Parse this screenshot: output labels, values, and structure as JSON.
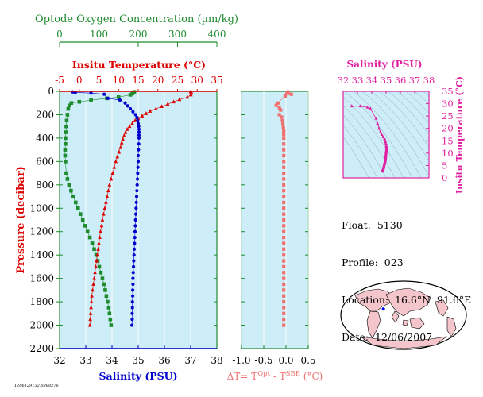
{
  "colors": {
    "oxygen": "#1e8c2e",
    "temperature": "#dd0000",
    "salinity": "#0000cc",
    "delta": "#f07070",
    "ts": "#e020a0",
    "panel_fill": "#cdeef8"
  },
  "caption": "1206129132.0388276",
  "info": {
    "float": "Float:  5130",
    "profile": "Profile:  023",
    "location": "Location:  16.6°N  91.6°E",
    "date": "Date:  12/06/2007"
  },
  "chart_data": [
    {
      "type": "scatter",
      "panel": "profile",
      "ylabel": "Pressure (decibar)",
      "ylim": [
        2200,
        0
      ],
      "yticks": [
        0,
        200,
        400,
        600,
        800,
        1000,
        1200,
        1400,
        1600,
        1800,
        2000,
        2200
      ],
      "axes": {
        "salinity": {
          "label": "Salinity (PSU)",
          "lim": [
            32,
            38
          ],
          "ticks": [
            32,
            33,
            34,
            35,
            36,
            37,
            38
          ]
        },
        "temperature": {
          "label": "Insitu Temperature (°C)",
          "lim": [
            -5,
            35
          ],
          "ticks": [
            -5,
            0,
            5,
            10,
            15,
            20,
            25,
            30,
            35
          ]
        },
        "oxygen": {
          "label": "Optode Oxygen Concentration (µm/kg)",
          "lim": [
            0,
            400
          ],
          "ticks": [
            0,
            100,
            200,
            300,
            400
          ]
        }
      },
      "series": [
        {
          "axis": "oxygen",
          "marker": "square",
          "points": [
            [
              190,
              5
            ],
            [
              188,
              10
            ],
            [
              185,
              20
            ],
            [
              180,
              30
            ],
            [
              150,
              50
            ],
            [
              120,
              60
            ],
            [
              80,
              75
            ],
            [
              50,
              90
            ],
            [
              30,
              100
            ],
            [
              25,
              120
            ],
            [
              22,
              150
            ],
            [
              20,
              200
            ],
            [
              18,
              250
            ],
            [
              17,
              300
            ],
            [
              16,
              350
            ],
            [
              15,
              400
            ],
            [
              15,
              450
            ],
            [
              14,
              500
            ],
            [
              14,
              550
            ],
            [
              15,
              600
            ],
            [
              17,
              700
            ],
            [
              20,
              750
            ],
            [
              24,
              800
            ],
            [
              29,
              850
            ],
            [
              35,
              900
            ],
            [
              41,
              950
            ],
            [
              47,
              1000
            ],
            [
              53,
              1050
            ],
            [
              59,
              1100
            ],
            [
              65,
              1150
            ],
            [
              71,
              1200
            ],
            [
              77,
              1250
            ],
            [
              83,
              1300
            ],
            [
              88,
              1350
            ],
            [
              93,
              1400
            ],
            [
              97,
              1450
            ],
            [
              101,
              1500
            ],
            [
              105,
              1550
            ],
            [
              109,
              1600
            ],
            [
              113,
              1650
            ],
            [
              116,
              1700
            ],
            [
              119,
              1750
            ],
            [
              122,
              1800
            ],
            [
              125,
              1850
            ],
            [
              127,
              1900
            ],
            [
              129,
              1950
            ],
            [
              131,
              2000
            ]
          ]
        },
        {
          "axis": "temperature",
          "marker": "triangle",
          "points": [
            [
              28.3,
              5
            ],
            [
              28.6,
              15
            ],
            [
              28.4,
              30
            ],
            [
              27.5,
              50
            ],
            [
              25.5,
              70
            ],
            [
              24,
              90
            ],
            [
              22.5,
              110
            ],
            [
              21,
              130
            ],
            [
              19.5,
              150
            ],
            [
              18,
              170
            ],
            [
              17,
              190
            ],
            [
              16,
              210
            ],
            [
              15,
              230
            ],
            [
              14.2,
              250
            ],
            [
              13.5,
              275
            ],
            [
              12.8,
              300
            ],
            [
              12.2,
              325
            ],
            [
              11.8,
              350
            ],
            [
              11.4,
              380
            ],
            [
              11.1,
              410
            ],
            [
              10.8,
              440
            ],
            [
              10.5,
              480
            ],
            [
              10.1,
              520
            ],
            [
              9.7,
              560
            ],
            [
              9.3,
              600
            ],
            [
              8.9,
              650
            ],
            [
              8.5,
              700
            ],
            [
              8.1,
              750
            ],
            [
              7.7,
              800
            ],
            [
              7.4,
              850
            ],
            [
              7.1,
              900
            ],
            [
              6.8,
              950
            ],
            [
              6.5,
              1000
            ],
            [
              6.2,
              1050
            ],
            [
              5.9,
              1100
            ],
            [
              5.7,
              1150
            ],
            [
              5.4,
              1200
            ],
            [
              5.2,
              1250
            ],
            [
              5,
              1300
            ],
            [
              4.8,
              1350
            ],
            [
              4.6,
              1400
            ],
            [
              4.4,
              1450
            ],
            [
              4.2,
              1500
            ],
            [
              4,
              1550
            ],
            [
              3.8,
              1600
            ],
            [
              3.6,
              1650
            ],
            [
              3.4,
              1700
            ],
            [
              3.2,
              1750
            ],
            [
              3.1,
              1800
            ],
            [
              3,
              1850
            ],
            [
              2.9,
              1900
            ],
            [
              2.8,
              1950
            ],
            [
              2.7,
              2000
            ]
          ]
        },
        {
          "axis": "salinity",
          "marker": "circle",
          "points": [
            [
              32.5,
              5
            ],
            [
              32.6,
              10
            ],
            [
              33.2,
              15
            ],
            [
              33.7,
              25
            ],
            [
              33.85,
              60
            ],
            [
              34.3,
              75
            ],
            [
              34.5,
              100
            ],
            [
              34.6,
              125
            ],
            [
              34.7,
              150
            ],
            [
              34.8,
              175
            ],
            [
              34.9,
              200
            ],
            [
              34.95,
              225
            ],
            [
              34.98,
              250
            ],
            [
              35,
              275
            ],
            [
              35.02,
              300
            ],
            [
              35.03,
              325
            ],
            [
              35.03,
              350
            ],
            [
              35.03,
              375
            ],
            [
              35.03,
              400
            ],
            [
              35.02,
              450
            ],
            [
              35.01,
              500
            ],
            [
              35,
              550
            ],
            [
              35,
              600
            ],
            [
              34.99,
              650
            ],
            [
              34.98,
              700
            ],
            [
              34.97,
              750
            ],
            [
              34.96,
              800
            ],
            [
              34.95,
              850
            ],
            [
              34.94,
              900
            ],
            [
              34.93,
              950
            ],
            [
              34.92,
              1000
            ],
            [
              34.91,
              1050
            ],
            [
              34.9,
              1100
            ],
            [
              34.89,
              1150
            ],
            [
              34.88,
              1200
            ],
            [
              34.87,
              1250
            ],
            [
              34.86,
              1300
            ],
            [
              34.85,
              1350
            ],
            [
              34.84,
              1400
            ],
            [
              34.83,
              1450
            ],
            [
              34.82,
              1500
            ],
            [
              34.81,
              1550
            ],
            [
              34.8,
              1600
            ],
            [
              34.8,
              1650
            ],
            [
              34.79,
              1700
            ],
            [
              34.79,
              1750
            ],
            [
              34.78,
              1800
            ],
            [
              34.78,
              1850
            ],
            [
              34.77,
              1900
            ],
            [
              34.77,
              1950
            ],
            [
              34.76,
              2000
            ]
          ]
        }
      ]
    },
    {
      "type": "scatter",
      "panel": "delta",
      "xlabel": "ΔT= T",
      "xlabel_sup1": "Opt",
      "xlabel_mid": " - T",
      "xlabel_sup2": "SBE",
      "xlabel_unit": " (°C)",
      "xlim": [
        -1.0,
        0.5
      ],
      "xticks": [
        "-1.0",
        "-0.5",
        "0.0",
        "0.5"
      ],
      "ylim": [
        2200,
        0
      ],
      "points": [
        [
          0.05,
          5
        ],
        [
          0.02,
          15
        ],
        [
          0.12,
          25
        ],
        [
          -0.02,
          40
        ],
        [
          -0.18,
          100
        ],
        [
          -0.22,
          120
        ],
        [
          -0.15,
          140
        ],
        [
          -0.12,
          160
        ],
        [
          -0.15,
          200
        ],
        [
          -0.1,
          220
        ],
        [
          -0.08,
          250
        ],
        [
          -0.07,
          280
        ],
        [
          -0.06,
          310
        ],
        [
          -0.05,
          340
        ],
        [
          -0.05,
          370
        ],
        [
          -0.05,
          400
        ],
        [
          -0.05,
          450
        ],
        [
          -0.05,
          500
        ],
        [
          -0.05,
          550
        ],
        [
          -0.05,
          600
        ],
        [
          -0.05,
          650
        ],
        [
          -0.05,
          700
        ],
        [
          -0.05,
          750
        ],
        [
          -0.05,
          800
        ],
        [
          -0.05,
          850
        ],
        [
          -0.05,
          900
        ],
        [
          -0.05,
          950
        ],
        [
          -0.05,
          1000
        ],
        [
          -0.05,
          1050
        ],
        [
          -0.05,
          1100
        ],
        [
          -0.05,
          1150
        ],
        [
          -0.05,
          1200
        ],
        [
          -0.05,
          1250
        ],
        [
          -0.05,
          1300
        ],
        [
          -0.05,
          1350
        ],
        [
          -0.05,
          1400
        ],
        [
          -0.05,
          1450
        ],
        [
          -0.05,
          1500
        ],
        [
          -0.05,
          1550
        ],
        [
          -0.05,
          1600
        ],
        [
          -0.05,
          1650
        ],
        [
          -0.05,
          1700
        ],
        [
          -0.05,
          1750
        ],
        [
          -0.05,
          1800
        ],
        [
          -0.05,
          1850
        ],
        [
          -0.05,
          1900
        ],
        [
          -0.05,
          1950
        ],
        [
          -0.05,
          2000
        ]
      ]
    },
    {
      "type": "scatter",
      "panel": "ts",
      "xlabel": "Salinity (PSU)",
      "ylabel": "Insitu Temperature (°C)",
      "xlim": [
        32,
        38
      ],
      "ylim": [
        0,
        35
      ],
      "xticks": [
        32,
        33,
        34,
        35,
        36,
        37,
        38
      ],
      "yticks": [
        0,
        5,
        10,
        15,
        20,
        25,
        30,
        35
      ],
      "points": [
        [
          32.6,
          29
        ],
        [
          33.2,
          29
        ],
        [
          33.7,
          28.5
        ],
        [
          33.9,
          28
        ],
        [
          34.3,
          24
        ],
        [
          34.4,
          22
        ],
        [
          34.5,
          20
        ],
        [
          34.6,
          18.5
        ],
        [
          34.7,
          17.5
        ],
        [
          34.8,
          16.5
        ],
        [
          34.9,
          15.5
        ],
        [
          34.95,
          14.5
        ],
        [
          35,
          13.5
        ],
        [
          35.02,
          12.5
        ],
        [
          35.03,
          11.5
        ],
        [
          35.03,
          11
        ],
        [
          35.02,
          10.5
        ],
        [
          35,
          10
        ],
        [
          35,
          9.5
        ],
        [
          34.99,
          9
        ],
        [
          34.98,
          8.5
        ],
        [
          34.97,
          8
        ],
        [
          34.96,
          7.5
        ],
        [
          34.95,
          7
        ],
        [
          34.93,
          6.5
        ],
        [
          34.91,
          6
        ],
        [
          34.89,
          5.5
        ],
        [
          34.87,
          5
        ],
        [
          34.85,
          4.5
        ],
        [
          34.83,
          4
        ],
        [
          34.81,
          3.5
        ],
        [
          34.8,
          3.2
        ],
        [
          34.78,
          3
        ],
        [
          34.77,
          2.8
        ],
        [
          34.76,
          2.7
        ]
      ]
    },
    {
      "type": "map",
      "panel": "location",
      "marker": {
        "lat": 16.6,
        "lon": 91.6
      }
    }
  ]
}
